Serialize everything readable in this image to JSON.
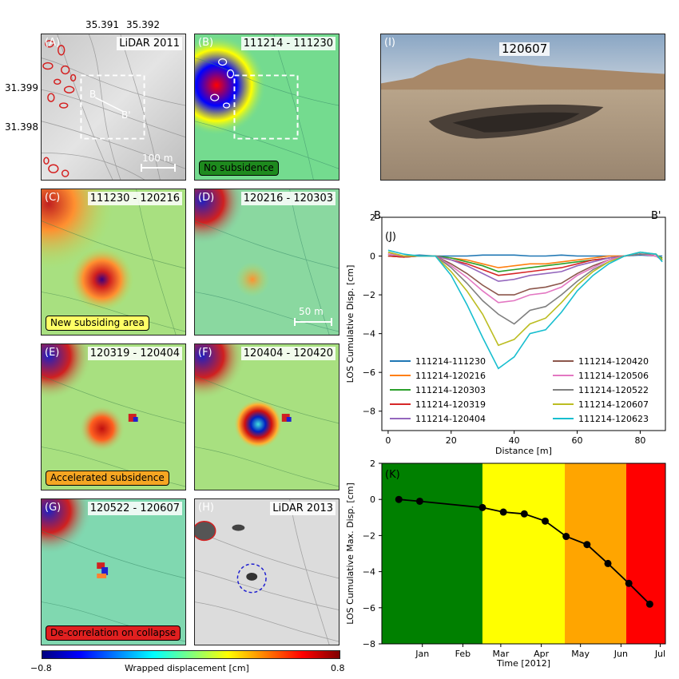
{
  "colors": {
    "accent_red": "#d42020",
    "new_area": "#ffff66",
    "accelerated": "#f5a623",
    "decorrelation": "#e02020",
    "no_subsidence": "#1e8a1e"
  },
  "map_coords": {
    "x_ticks": [
      "35.391",
      "35.392"
    ],
    "y_ticks": [
      "31.399",
      "31.398"
    ]
  },
  "panels": {
    "A": {
      "label": "(A)",
      "tag": "LiDAR 2011",
      "profile_start": "B",
      "profile_end": "B'",
      "scale": "100 m"
    },
    "B": {
      "label": "(B)",
      "tag": "111214 - 111230",
      "note": "No subsidence"
    },
    "C": {
      "label": "(C)",
      "tag": "111230 - 120216",
      "note": "New subsiding area"
    },
    "D": {
      "label": "(D)",
      "tag": "120216 - 120303",
      "scale": "50 m"
    },
    "E": {
      "label": "(E)",
      "tag": "120319 - 120404",
      "note": "Accelerated subsidence"
    },
    "F": {
      "label": "(F)",
      "tag": "120404 - 120420"
    },
    "G": {
      "label": "(G)",
      "tag": "120522 - 120607",
      "note": "De-correlation on collapse"
    },
    "H": {
      "label": "(H)",
      "tag": "LiDAR 2013"
    },
    "I": {
      "label": "(I)",
      "tag": "120607"
    }
  },
  "colorbar": {
    "label": "Wrapped displacement [cm]",
    "min": "−0.8",
    "max": "0.8"
  },
  "chart_data": [
    {
      "type": "line",
      "panel_label": "(J)",
      "corner_left": "B",
      "corner_right": "B'",
      "xlabel": "Distance [m]",
      "ylabel": "LOS Cumulative Disp. [cm]",
      "xlim": [
        -2,
        88
      ],
      "ylim": [
        -9,
        2
      ],
      "x_ticks": [
        0,
        20,
        40,
        60,
        80
      ],
      "y_ticks": [
        2,
        0,
        -2,
        -4,
        -6,
        -8
      ],
      "x": [
        0,
        5,
        10,
        15,
        20,
        25,
        30,
        35,
        40,
        45,
        50,
        55,
        60,
        65,
        70,
        75,
        80,
        85,
        87
      ],
      "legend_columns": 2,
      "series": [
        {
          "name": "111214-111230",
          "color": "#1f77b4",
          "values": [
            0.0,
            0.0,
            0.05,
            0.0,
            0.0,
            0.0,
            0.05,
            0.05,
            0.05,
            0.0,
            0.0,
            0.05,
            0.0,
            0.0,
            0.0,
            0.0,
            0.05,
            0.0,
            0.0
          ]
        },
        {
          "name": "111214-120216",
          "color": "#ff7f0e",
          "values": [
            0.0,
            -0.05,
            0.0,
            0.0,
            -0.1,
            -0.2,
            -0.4,
            -0.6,
            -0.5,
            -0.4,
            -0.4,
            -0.3,
            -0.2,
            -0.1,
            0.0,
            0.0,
            0.1,
            0.0,
            -0.1
          ]
        },
        {
          "name": "111214-120303",
          "color": "#2ca02c",
          "values": [
            0.0,
            -0.05,
            0.0,
            0.0,
            -0.1,
            -0.3,
            -0.5,
            -0.8,
            -0.7,
            -0.6,
            -0.5,
            -0.4,
            -0.3,
            -0.2,
            -0.1,
            0.0,
            0.1,
            0.0,
            -0.1
          ]
        },
        {
          "name": "111214-120319",
          "color": "#d62728",
          "values": [
            0.0,
            -0.05,
            0.0,
            0.0,
            -0.2,
            -0.4,
            -0.7,
            -1.0,
            -0.9,
            -0.8,
            -0.7,
            -0.6,
            -0.4,
            -0.2,
            -0.1,
            0.0,
            0.1,
            0.0,
            -0.2
          ]
        },
        {
          "name": "111214-120404",
          "color": "#9467bd",
          "values": [
            0.1,
            0.0,
            0.0,
            0.0,
            -0.2,
            -0.5,
            -0.9,
            -1.3,
            -1.2,
            -1.0,
            -0.9,
            -0.8,
            -0.5,
            -0.3,
            -0.1,
            0.0,
            0.1,
            0.0,
            -0.2
          ]
        },
        {
          "name": "111214-120420",
          "color": "#8c564b",
          "values": [
            0.1,
            0.0,
            0.0,
            0.0,
            -0.4,
            -0.9,
            -1.5,
            -2.0,
            -2.0,
            -1.7,
            -1.6,
            -1.4,
            -0.9,
            -0.5,
            -0.2,
            0.0,
            0.1,
            0.0,
            -0.2
          ]
        },
        {
          "name": "111214-120506",
          "color": "#e377c2",
          "values": [
            0.1,
            0.0,
            0.0,
            0.0,
            -0.5,
            -1.1,
            -1.8,
            -2.4,
            -2.3,
            -2.0,
            -1.9,
            -1.6,
            -1.0,
            -0.6,
            -0.2,
            0.0,
            0.1,
            0.0,
            -0.2
          ]
        },
        {
          "name": "111214-120522",
          "color": "#7f7f7f",
          "values": [
            0.2,
            0.0,
            0.0,
            0.0,
            -0.6,
            -1.4,
            -2.3,
            -3.0,
            -3.5,
            -2.8,
            -2.6,
            -2.0,
            -1.3,
            -0.7,
            -0.3,
            0.0,
            0.1,
            0.1,
            -0.2
          ]
        },
        {
          "name": "111214-120607",
          "color": "#bcbd22",
          "values": [
            0.2,
            0.0,
            0.0,
            0.0,
            -0.8,
            -1.8,
            -3.0,
            -4.6,
            -4.3,
            -3.5,
            -3.2,
            -2.4,
            -1.5,
            -0.8,
            -0.3,
            0.0,
            0.2,
            0.1,
            -0.2
          ]
        },
        {
          "name": "111214-120623",
          "color": "#17becf",
          "values": [
            0.3,
            0.1,
            0.0,
            0.0,
            -1.0,
            -2.5,
            -4.2,
            -5.8,
            -5.2,
            -4.0,
            -3.8,
            -2.9,
            -1.8,
            -1.0,
            -0.4,
            0.0,
            0.2,
            0.1,
            -0.3
          ]
        }
      ]
    },
    {
      "type": "line",
      "panel_label": "(K)",
      "xlabel": "Time [2012]",
      "ylabel": "LOS Cumulative Max. Disp. [cm]",
      "ylim": [
        -8,
        2
      ],
      "y_ticks": [
        2,
        0,
        -2,
        -4,
        -6,
        -8
      ],
      "xlim": [
        "2011-12-01",
        "2012-07-05"
      ],
      "x_tick_labels": [
        "Jan",
        "Feb",
        "Mar",
        "Apr",
        "May",
        "Jun",
        "Jul"
      ],
      "x_tick_dates": [
        "2012-01-01",
        "2012-02-01",
        "2012-03-01",
        "2012-04-01",
        "2012-05-01",
        "2012-06-01",
        "2012-07-01"
      ],
      "background_bands": [
        {
          "start": "2011-12-01",
          "end": "2012-02-16",
          "color": "#008000"
        },
        {
          "start": "2012-02-16",
          "end": "2012-04-19",
          "color": "#ffff00"
        },
        {
          "start": "2012-04-19",
          "end": "2012-06-05",
          "color": "#ffa500"
        },
        {
          "start": "2012-06-05",
          "end": "2012-07-05",
          "color": "#ff0000"
        }
      ],
      "series": [
        {
          "color": "#000000",
          "x": [
            "2011-12-14",
            "2011-12-30",
            "2012-02-16",
            "2012-03-03",
            "2012-03-19",
            "2012-04-04",
            "2012-04-20",
            "2012-05-06",
            "2012-05-22",
            "2012-06-07",
            "2012-06-23"
          ],
          "values": [
            0.0,
            -0.1,
            -0.45,
            -0.7,
            -0.8,
            -1.2,
            -2.05,
            -2.5,
            -3.55,
            -4.65,
            -5.8
          ]
        }
      ]
    }
  ]
}
